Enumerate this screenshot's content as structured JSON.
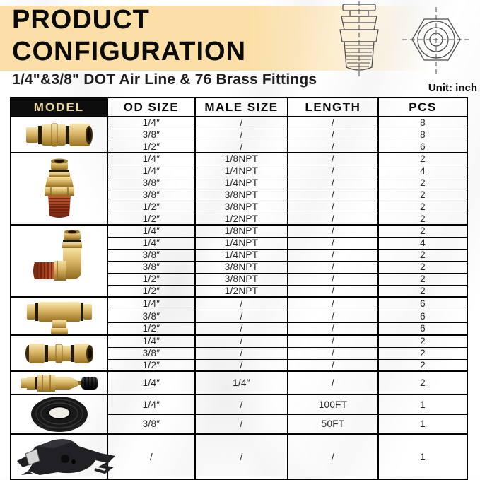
{
  "header": {
    "title_line1": "PRODUCT",
    "title_line2": "CONFIGURATION",
    "subtitle": "1/4\"&3/8\" DOT Air Line & 76 Brass Fittings",
    "unit_label": "Unit: inch"
  },
  "colors": {
    "title_band": "#fbdfa6",
    "model_header_bg": "#0d0d0d",
    "model_header_text": "#e9d7a0",
    "brass": "#d2a74e",
    "thread_red": "#a03c20"
  },
  "table": {
    "headers": [
      "MODEL",
      "OD SIZE",
      "MALE SIZE",
      "LENGTH",
      "PCS"
    ],
    "groups": [
      {
        "model_icon": "union-connector-fitting",
        "rows": [
          [
            "1/4″",
            "/",
            "/",
            "8"
          ],
          [
            "3/8″",
            "/",
            "/",
            "8"
          ],
          [
            "1/2″",
            "/",
            "/",
            "6"
          ]
        ]
      },
      {
        "model_icon": "male-straight-connector-fitting",
        "rows": [
          [
            "1/4″",
            "1/8NPT",
            "/",
            "2"
          ],
          [
            "1/4″",
            "1/4NPT",
            "/",
            "4"
          ],
          [
            "3/8″",
            "1/4NPT",
            "/",
            "2"
          ],
          [
            "3/8″",
            "3/8NPT",
            "/",
            "2"
          ],
          [
            "1/2″",
            "3/8NPT",
            "/",
            "2"
          ],
          [
            "1/2″",
            "1/2NPT",
            "/",
            "2"
          ]
        ]
      },
      {
        "model_icon": "male-elbow-fitting",
        "rows": [
          [
            "1/4″",
            "1/8NPT",
            "/",
            "2"
          ],
          [
            "1/4″",
            "1/4NPT",
            "/",
            "4"
          ],
          [
            "3/8″",
            "1/4NPT",
            "/",
            "2"
          ],
          [
            "3/8″",
            "3/8NPT",
            "/",
            "2"
          ],
          [
            "1/2″",
            "3/8NPT",
            "/",
            "2"
          ],
          [
            "1/2″",
            "1/2NPT",
            "/",
            "2"
          ]
        ]
      },
      {
        "model_icon": "tee-union-fitting",
        "rows": [
          [
            "1/4″",
            "/",
            "/",
            "6"
          ],
          [
            "3/8″",
            "/",
            "/",
            "6"
          ],
          [
            "1/2″",
            "/",
            "/",
            "6"
          ]
        ]
      },
      {
        "model_icon": "straight-union-fitting",
        "rows": [
          [
            "1/4″",
            "/",
            "/",
            "2"
          ],
          [
            "3/8″",
            "/",
            "/",
            "2"
          ],
          [
            "1/2″",
            "/",
            "/",
            "2"
          ]
        ]
      },
      {
        "model_icon": "shut-off-valve-fitting",
        "rows": [
          [
            "1/4″",
            "1/4″",
            "/",
            "2"
          ]
        ]
      },
      {
        "model_icon": "air-line-tubing-coil",
        "rows": [
          [
            "1/4″",
            "/",
            "100FT",
            "1"
          ],
          [
            "3/8″",
            "/",
            "50FT",
            "1"
          ]
        ]
      },
      {
        "model_icon": "tube-cutter-tool",
        "rows": [
          [
            "/",
            "/",
            "/",
            "1"
          ]
        ]
      }
    ]
  }
}
